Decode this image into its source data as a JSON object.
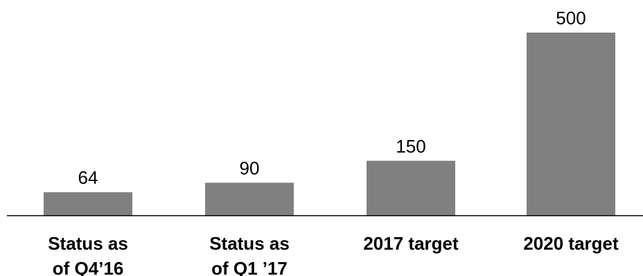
{
  "chart_data": {
    "type": "bar",
    "categories": [
      [
        "Status as",
        "of Q4’16"
      ],
      [
        "Status as",
        "of Q1 ’17"
      ],
      [
        "2017 target"
      ],
      [
        "2020 target"
      ]
    ],
    "values": [
      64,
      90,
      150,
      500
    ],
    "data_labels": [
      "64",
      "90",
      "150",
      "500"
    ],
    "title": "",
    "xlabel": "",
    "ylabel": "",
    "ylim": [
      0,
      500
    ],
    "grid": false,
    "legend": "none",
    "bar_color": "#808080"
  }
}
